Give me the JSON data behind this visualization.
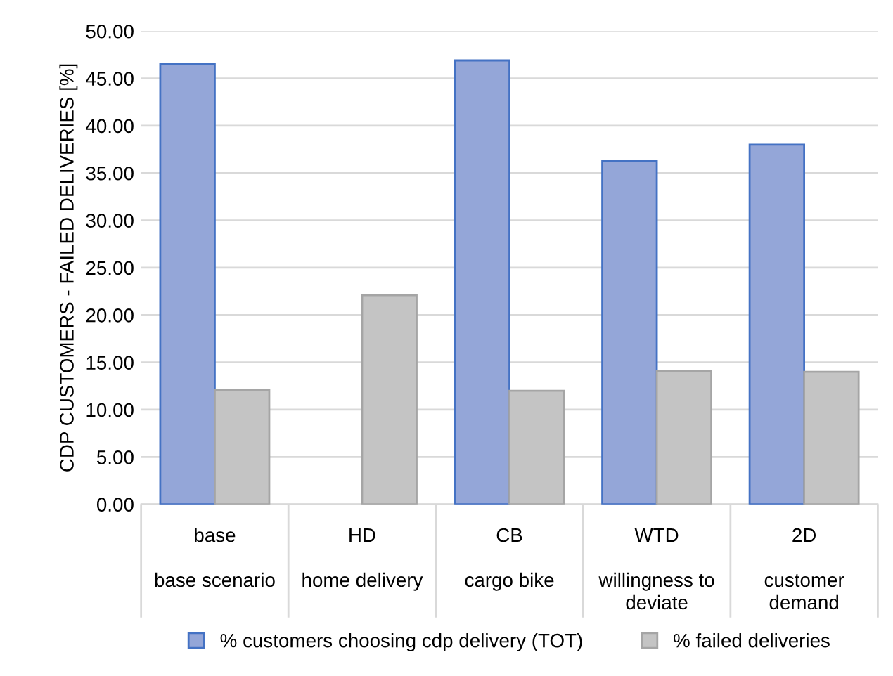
{
  "chart_data": {
    "type": "bar",
    "ylabel": "CDP CUSTOMERS - FAILED DELIVERIES [%]",
    "categories": [
      "base\n\nbase scenario",
      "HD\n\nhome delivery",
      "CB\n\ncargo bike",
      "WTD\n\nwillingness to\ndeviate",
      "2D\n\ncustomer\ndemand"
    ],
    "series": [
      {
        "name": "% customers choosing cdp delivery (TOT)",
        "color": "#94a6d8",
        "values": [
          46.5,
          null,
          46.9,
          36.3,
          38.0
        ]
      },
      {
        "name": "% failed deliveries",
        "color": "#c4c4c4",
        "values": [
          12.1,
          22.1,
          12.0,
          14.1,
          14.0
        ]
      }
    ],
    "ylim": [
      0,
      50
    ],
    "yticks": [
      {
        "value": 0,
        "label": "0.00"
      },
      {
        "value": 5,
        "label": "5.00"
      },
      {
        "value": 10,
        "label": "10.00"
      },
      {
        "value": 15,
        "label": "15.00"
      },
      {
        "value": 20,
        "label": "20.00"
      },
      {
        "value": 25,
        "label": "25.00"
      },
      {
        "value": 30,
        "label": "30.00"
      },
      {
        "value": 35,
        "label": "35.00"
      },
      {
        "value": 40,
        "label": "40.00"
      },
      {
        "value": 45,
        "label": "45.00"
      },
      {
        "value": 50,
        "label": "50.00"
      }
    ],
    "grid": "y",
    "legend": "bottom"
  }
}
